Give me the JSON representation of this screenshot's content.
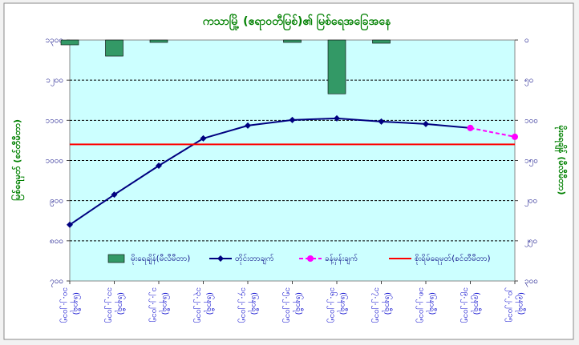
{
  "chart_data": {
    "type": "combo",
    "title": "ကသာမြို့ (ဧရာဝတီမြစ်)၏ မြစ်ရေအခြေအနေ",
    "y_label": "မြစ်ရေမှတ် (စင်တီမီတာ)",
    "y2_label": "မိုးရေချိန် (မီလီမီတာ)",
    "categories": [
      "၁၀.၂.၂၀၁၅",
      "၁၁.၂.၂၀၁၅",
      "၁၂.၂.၂၀၁၅",
      "၁၃.၂.၂၀၁၅",
      "၁၄.၂.၂၀၁၅",
      "၁၅.၂.၂၀၁၅",
      "၁၆.၂.၂၀၁၅",
      "၁၇.၂.၂၀၁၅",
      "၁၈.၂.၂၀၁၅",
      "၁၉.၂.၂၀၁၅",
      "၂၀.၂.၂၀၁၅"
    ],
    "category_times": [
      "(၆နာရီ)",
      "(၆နာရီ)",
      "(၆နာရီ)",
      "(၆နာရီ)",
      "(၆နာရီ)",
      "(၆နာရီ)",
      "(၆နာရီ)",
      "(၆နာရီ)",
      "(၆နာရီ)",
      "(၉နာရီ)",
      "(၉နာရီ)"
    ],
    "ylim": [
      700,
      1300
    ],
    "yticks": [
      {
        "value": 700,
        "label": "၇၀၀"
      },
      {
        "value": 800,
        "label": "၈၀၀"
      },
      {
        "value": 900,
        "label": "၉၀၀"
      },
      {
        "value": 1000,
        "label": "၁၀၀၀"
      },
      {
        "value": 1100,
        "label": "၁၁၀၀"
      },
      {
        "value": 1200,
        "label": "၁၂၀၀"
      },
      {
        "value": 1300,
        "label": "၁၃၀၀"
      }
    ],
    "y2lim": [
      0,
      300
    ],
    "y2_inverted": true,
    "y2ticks": [
      {
        "value": 0,
        "label": "၀"
      },
      {
        "value": 50,
        "label": "၅၀"
      },
      {
        "value": 100,
        "label": "၁၀၀"
      },
      {
        "value": 150,
        "label": "၁၅၀"
      },
      {
        "value": 200,
        "label": "၂၀၀"
      },
      {
        "value": 250,
        "label": "၂၅၀"
      },
      {
        "value": 300,
        "label": "၃၀၀"
      }
    ],
    "grid": true,
    "series": [
      {
        "name": "မိုးရေချိန်(မီလီမီတာ)",
        "type": "bar",
        "axis": "y2",
        "color": "#339966",
        "values": [
          6,
          20,
          3,
          0,
          0,
          3,
          67,
          4,
          0,
          0,
          0
        ]
      },
      {
        "name": "တိုင်းတာချက်",
        "type": "line",
        "color": "#000080",
        "values": [
          840,
          915,
          987,
          1055,
          1087,
          1101,
          1105,
          1097,
          1091,
          1081,
          null
        ]
      },
      {
        "name": "ခန့်မှန်းချက်",
        "type": "line",
        "dashed": true,
        "color": "#ff00ff",
        "values": [
          null,
          null,
          null,
          null,
          null,
          null,
          null,
          null,
          null,
          1081,
          1059
        ]
      }
    ],
    "danger_name": "စိုးရိမ်ရေမှတ်(စင်တီမီတာ)",
    "danger_level": 1040,
    "danger_color": "#ff0000"
  }
}
